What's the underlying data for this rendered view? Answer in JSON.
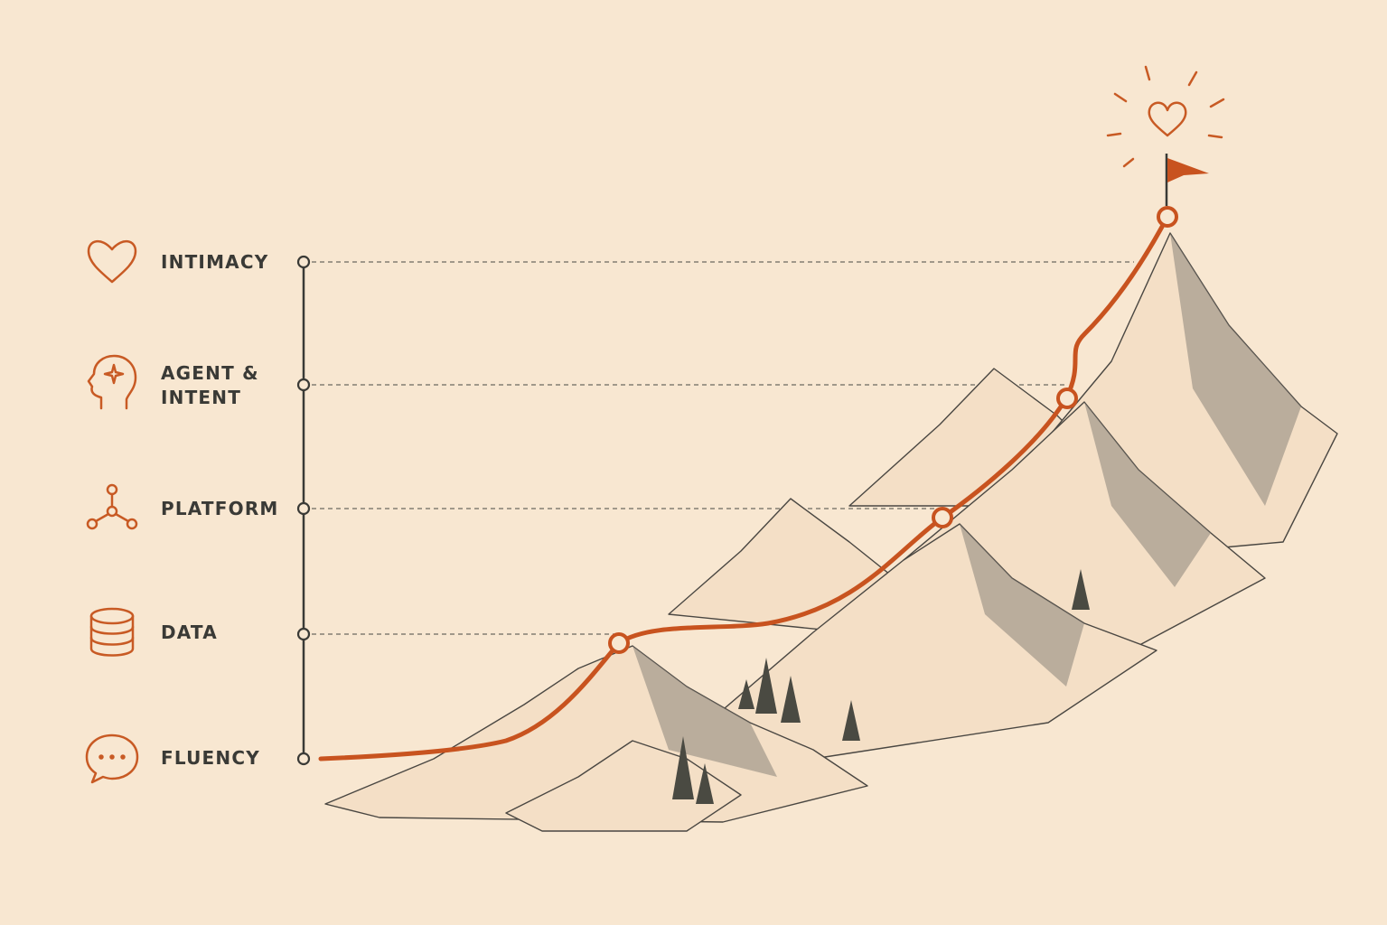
{
  "levels": [
    {
      "label": "INTIMACY"
    },
    {
      "label": "AGENT & INTENT"
    },
    {
      "label": "PLATFORM"
    },
    {
      "label": "DATA"
    },
    {
      "label": "FLUENCY"
    }
  ]
}
